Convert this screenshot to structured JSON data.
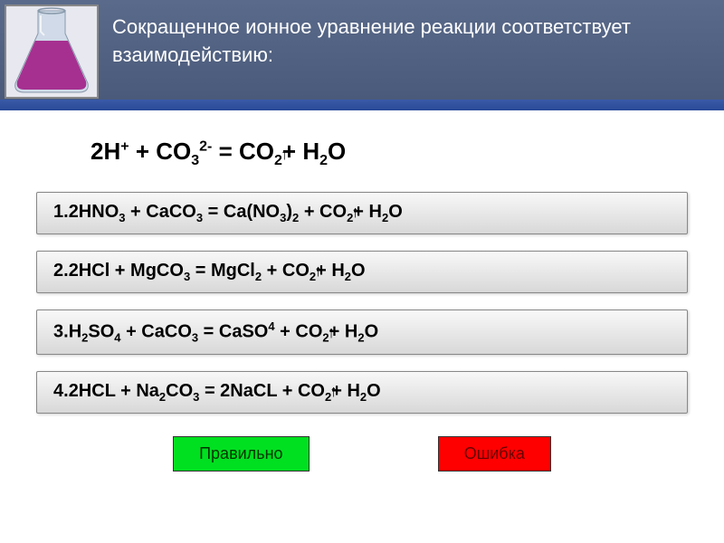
{
  "header": {
    "title": "Сокращенное ионное уравнение реакции соответствует взаимодействию:",
    "bg_gradient_top": "#5a6a8a",
    "bg_gradient_bottom": "#4a5a7a",
    "title_color": "#ffffff",
    "title_fontsize": 22
  },
  "blue_bar_color": "#2a4a98",
  "main_equation": {
    "html_parts": {
      "prefix": "2H",
      "sup1": "+",
      "mid1": " + CO",
      "sub1": "3",
      "sup2": "2-",
      "mid2": " = CO",
      "sub2": "2",
      "arrow": "↑",
      "mid3": "+ H",
      "sub3": "2",
      "suffix": "O"
    },
    "fontsize": 26
  },
  "options": [
    {
      "num": "1.",
      "parts": [
        "2HNO",
        {
          "sub": "3"
        },
        " + CaCO",
        {
          "sub": "3"
        },
        " = Ca(NO",
        {
          "sub": "3"
        },
        ")",
        {
          "sub": "2"
        },
        " + CO",
        {
          "sub": "2"
        },
        {
          "arrow": true
        },
        "+ H",
        {
          "sub": "2"
        },
        "O"
      ]
    },
    {
      "num": "2.",
      "parts": [
        "2HCl + MgCO",
        {
          "sub": "3"
        },
        " = MgCl",
        {
          "sub": "2"
        },
        " + CO",
        {
          "sub": "2"
        },
        {
          "arrow": true
        },
        "+ H",
        {
          "sub": "2"
        },
        "O"
      ]
    },
    {
      "num": "3.",
      "parts": [
        "H",
        {
          "sub": "2"
        },
        "SO",
        {
          "sub": "4"
        },
        " + CaCO",
        {
          "sub": "3"
        },
        " = CaSO",
        {
          "sup": "4"
        },
        " + CO",
        {
          "sub": "2"
        },
        {
          "arrow": true
        },
        "+ H",
        {
          "sub": "2"
        },
        "O"
      ]
    },
    {
      "num": "4.",
      "parts": [
        "2HCL + Na",
        {
          "sub": "2"
        },
        "CO",
        {
          "sub": "3"
        },
        " = 2NaCL + CO",
        {
          "sub": "2"
        },
        {
          "arrow": true
        },
        "+ H",
        {
          "sub": "2"
        },
        "O"
      ]
    }
  ],
  "option_style": {
    "bg_top": "#f8f8f8",
    "bg_bottom": "#d8d8d8",
    "border": "#888888",
    "fontsize": 20
  },
  "buttons": {
    "correct": {
      "label": "Правильно",
      "bg": "#00e020",
      "color": "#003300"
    },
    "wrong": {
      "label": "Ошибка",
      "bg": "#ff0000",
      "color": "#660000"
    }
  },
  "flask": {
    "liquid_color": "#a63090",
    "glass_color": "#c0d0e0",
    "highlight": "#ffffff"
  }
}
